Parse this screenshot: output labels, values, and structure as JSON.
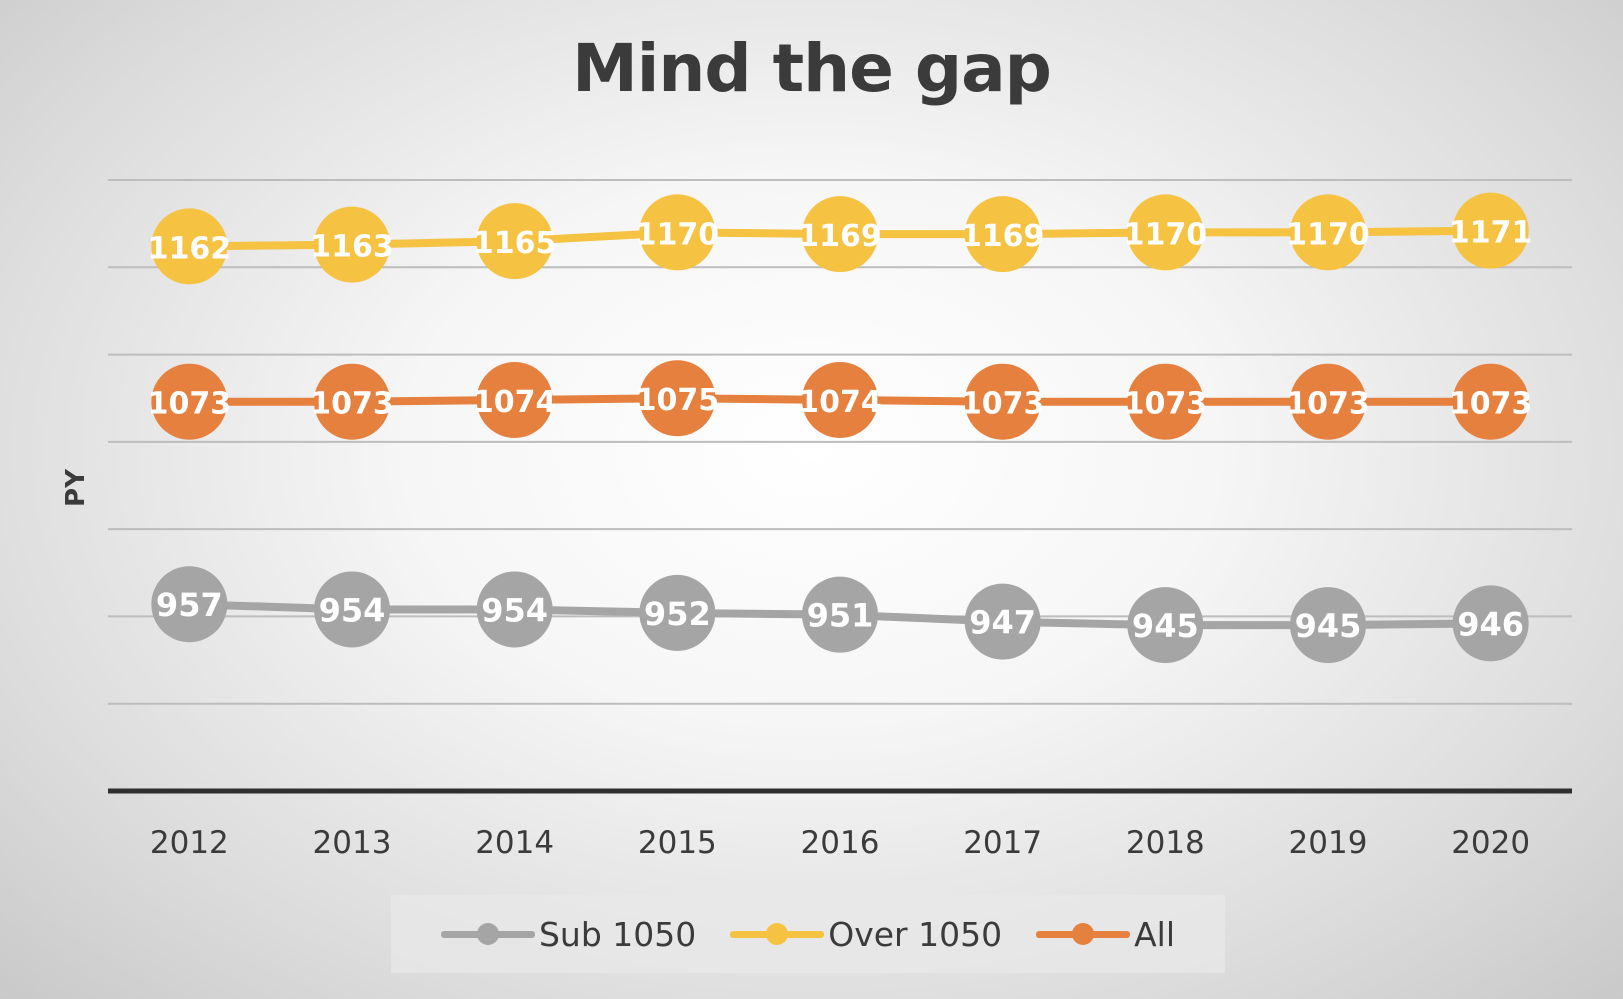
{
  "chart_data": {
    "type": "line",
    "title": "Mind the gap",
    "xlabel": "",
    "ylabel": "PY",
    "categories": [
      "2012",
      "2013",
      "2014",
      "2015",
      "2016",
      "2017",
      "2018",
      "2019",
      "2020"
    ],
    "ylim": [
      850,
      1200
    ],
    "grid": true,
    "legend": "bottom",
    "series": [
      {
        "name": "Sub 1050",
        "color": "#a5a5a5",
        "values": [
          957,
          954,
          954,
          952,
          951,
          947,
          945,
          945,
          946
        ]
      },
      {
        "name": "Over 1050",
        "color": "#f5c242",
        "values": [
          1162,
          1163,
          1165,
          1170,
          1169,
          1169,
          1170,
          1170,
          1171
        ]
      },
      {
        "name": "All",
        "color": "#e5803e",
        "values": [
          1073,
          1073,
          1074,
          1075,
          1074,
          1073,
          1073,
          1073,
          1073
        ]
      }
    ]
  }
}
